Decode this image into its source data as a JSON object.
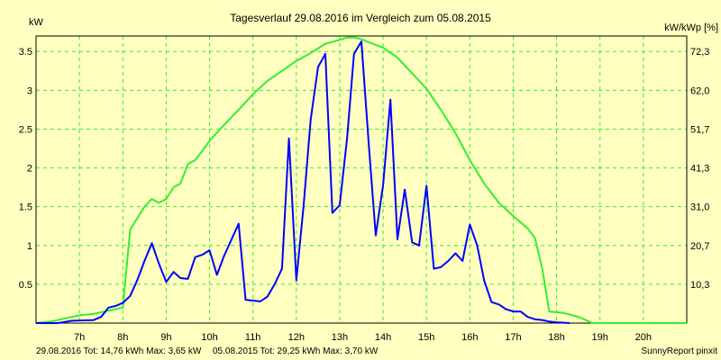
{
  "chart_data": {
    "type": "line",
    "title": "Tagesverlauf 29.08.2016 im Vergleich zum 05.08.2015",
    "ylabel_left": "kW",
    "ylabel_right": "kW/kWp [%]",
    "xlim": [
      6.0,
      21.0
    ],
    "ylim": [
      0,
      3.7
    ],
    "grid": true,
    "x_ticks": [
      {
        "value": 7,
        "label": "7h"
      },
      {
        "value": 8,
        "label": "8h"
      },
      {
        "value": 9,
        "label": "9h"
      },
      {
        "value": 10,
        "label": "10h"
      },
      {
        "value": 11,
        "label": "11h"
      },
      {
        "value": 12,
        "label": "12h"
      },
      {
        "value": 13,
        "label": "13h"
      },
      {
        "value": 14,
        "label": "14h"
      },
      {
        "value": 15,
        "label": "15h"
      },
      {
        "value": 16,
        "label": "16h"
      },
      {
        "value": 17,
        "label": "17h"
      },
      {
        "value": 18,
        "label": "18h"
      },
      {
        "value": 19,
        "label": "19h"
      },
      {
        "value": 20,
        "label": "20h"
      }
    ],
    "y_ticks_left": [
      {
        "value": 0.5,
        "label": "0.5"
      },
      {
        "value": 1,
        "label": "1"
      },
      {
        "value": 1.5,
        "label": "1.5"
      },
      {
        "value": 2,
        "label": "2"
      },
      {
        "value": 2.5,
        "label": "2.5"
      },
      {
        "value": 3,
        "label": "3"
      },
      {
        "value": 3.5,
        "label": "3.5"
      }
    ],
    "y_ticks_right": [
      {
        "value": 0.5,
        "label": "10,3"
      },
      {
        "value": 1,
        "label": "20,7"
      },
      {
        "value": 1.5,
        "label": "31,0"
      },
      {
        "value": 2,
        "label": "41,3"
      },
      {
        "value": 2.5,
        "label": "51,7"
      },
      {
        "value": 3,
        "label": "62,0"
      },
      {
        "value": 3.5,
        "label": "72,3"
      }
    ],
    "series": [
      {
        "name": "29.08.2016",
        "color": "#0000ff",
        "points": [
          [
            6.0,
            0.0
          ],
          [
            6.5,
            0.0
          ],
          [
            6.83,
            0.03
          ],
          [
            7.33,
            0.04
          ],
          [
            7.5,
            0.08
          ],
          [
            7.67,
            0.2
          ],
          [
            7.83,
            0.22
          ],
          [
            8.0,
            0.26
          ],
          [
            8.17,
            0.35
          ],
          [
            8.33,
            0.55
          ],
          [
            8.5,
            0.8
          ],
          [
            8.67,
            1.03
          ],
          [
            8.83,
            0.77
          ],
          [
            9.0,
            0.53
          ],
          [
            9.17,
            0.66
          ],
          [
            9.33,
            0.58
          ],
          [
            9.5,
            0.57
          ],
          [
            9.67,
            0.85
          ],
          [
            9.83,
            0.88
          ],
          [
            10.0,
            0.94
          ],
          [
            10.17,
            0.62
          ],
          [
            10.33,
            0.86
          ],
          [
            10.5,
            1.07
          ],
          [
            10.67,
            1.28
          ],
          [
            10.83,
            0.3
          ],
          [
            11.17,
            0.28
          ],
          [
            11.33,
            0.34
          ],
          [
            11.5,
            0.5
          ],
          [
            11.67,
            0.7
          ],
          [
            11.83,
            2.38
          ],
          [
            12.0,
            0.55
          ],
          [
            12.17,
            1.53
          ],
          [
            12.33,
            2.62
          ],
          [
            12.5,
            3.3
          ],
          [
            12.67,
            3.47
          ],
          [
            12.83,
            1.42
          ],
          [
            13.0,
            1.52
          ],
          [
            13.17,
            2.38
          ],
          [
            13.33,
            3.47
          ],
          [
            13.5,
            3.63
          ],
          [
            13.67,
            2.3
          ],
          [
            13.83,
            1.13
          ],
          [
            14.0,
            1.78
          ],
          [
            14.17,
            2.88
          ],
          [
            14.33,
            1.08
          ],
          [
            14.5,
            1.72
          ],
          [
            14.67,
            1.04
          ],
          [
            14.83,
            1.0
          ],
          [
            15.0,
            1.77
          ],
          [
            15.17,
            0.7
          ],
          [
            15.33,
            0.72
          ],
          [
            15.5,
            0.8
          ],
          [
            15.67,
            0.9
          ],
          [
            15.83,
            0.8
          ],
          [
            16.0,
            1.27
          ],
          [
            16.17,
            1.0
          ],
          [
            16.33,
            0.55
          ],
          [
            16.5,
            0.27
          ],
          [
            16.67,
            0.24
          ],
          [
            16.83,
            0.18
          ],
          [
            17.0,
            0.15
          ],
          [
            17.17,
            0.15
          ],
          [
            17.33,
            0.08
          ],
          [
            17.5,
            0.05
          ],
          [
            17.67,
            0.04
          ],
          [
            17.83,
            0.02
          ],
          [
            18.0,
            0.01
          ],
          [
            18.3,
            0.0
          ]
        ]
      },
      {
        "name": "05.08.2015",
        "color": "#33ee33",
        "points": [
          [
            6.0,
            0.0
          ],
          [
            6.33,
            0.02
          ],
          [
            6.67,
            0.06
          ],
          [
            7.0,
            0.1
          ],
          [
            7.33,
            0.12
          ],
          [
            7.67,
            0.16
          ],
          [
            8.0,
            0.2
          ],
          [
            8.17,
            1.2
          ],
          [
            8.33,
            1.35
          ],
          [
            8.5,
            1.5
          ],
          [
            8.67,
            1.6
          ],
          [
            8.83,
            1.55
          ],
          [
            9.0,
            1.6
          ],
          [
            9.17,
            1.75
          ],
          [
            9.33,
            1.8
          ],
          [
            9.5,
            2.05
          ],
          [
            9.67,
            2.1
          ],
          [
            9.83,
            2.22
          ],
          [
            10.0,
            2.35
          ],
          [
            10.33,
            2.55
          ],
          [
            10.67,
            2.75
          ],
          [
            11.0,
            2.95
          ],
          [
            11.33,
            3.12
          ],
          [
            11.67,
            3.25
          ],
          [
            12.0,
            3.38
          ],
          [
            12.33,
            3.48
          ],
          [
            12.67,
            3.6
          ],
          [
            13.0,
            3.65
          ],
          [
            13.17,
            3.68
          ],
          [
            13.33,
            3.68
          ],
          [
            13.5,
            3.66
          ],
          [
            13.67,
            3.62
          ],
          [
            14.0,
            3.55
          ],
          [
            14.33,
            3.42
          ],
          [
            14.67,
            3.22
          ],
          [
            15.0,
            3.02
          ],
          [
            15.33,
            2.75
          ],
          [
            15.67,
            2.45
          ],
          [
            16.0,
            2.1
          ],
          [
            16.33,
            1.8
          ],
          [
            16.67,
            1.55
          ],
          [
            17.0,
            1.38
          ],
          [
            17.33,
            1.22
          ],
          [
            17.5,
            1.1
          ],
          [
            17.67,
            0.7
          ],
          [
            17.83,
            0.15
          ],
          [
            18.0,
            0.14
          ],
          [
            18.17,
            0.13
          ],
          [
            18.5,
            0.08
          ],
          [
            18.83,
            0.0
          ],
          [
            21.0,
            0.0
          ]
        ]
      }
    ]
  },
  "footer": {
    "series1_text": "29.08.2016 Tot: 14,76 kWh Max: 3,65 kW",
    "series2_text": "05.08.2015 Tot: 29,25 kWh Max: 3,70 kW",
    "brand": "SunnyReport pinxit"
  },
  "colors": {
    "background": "#ffffc0",
    "grid": "#33ee33",
    "series1_text": "#0000ff",
    "series2_text": "#33ee33"
  }
}
